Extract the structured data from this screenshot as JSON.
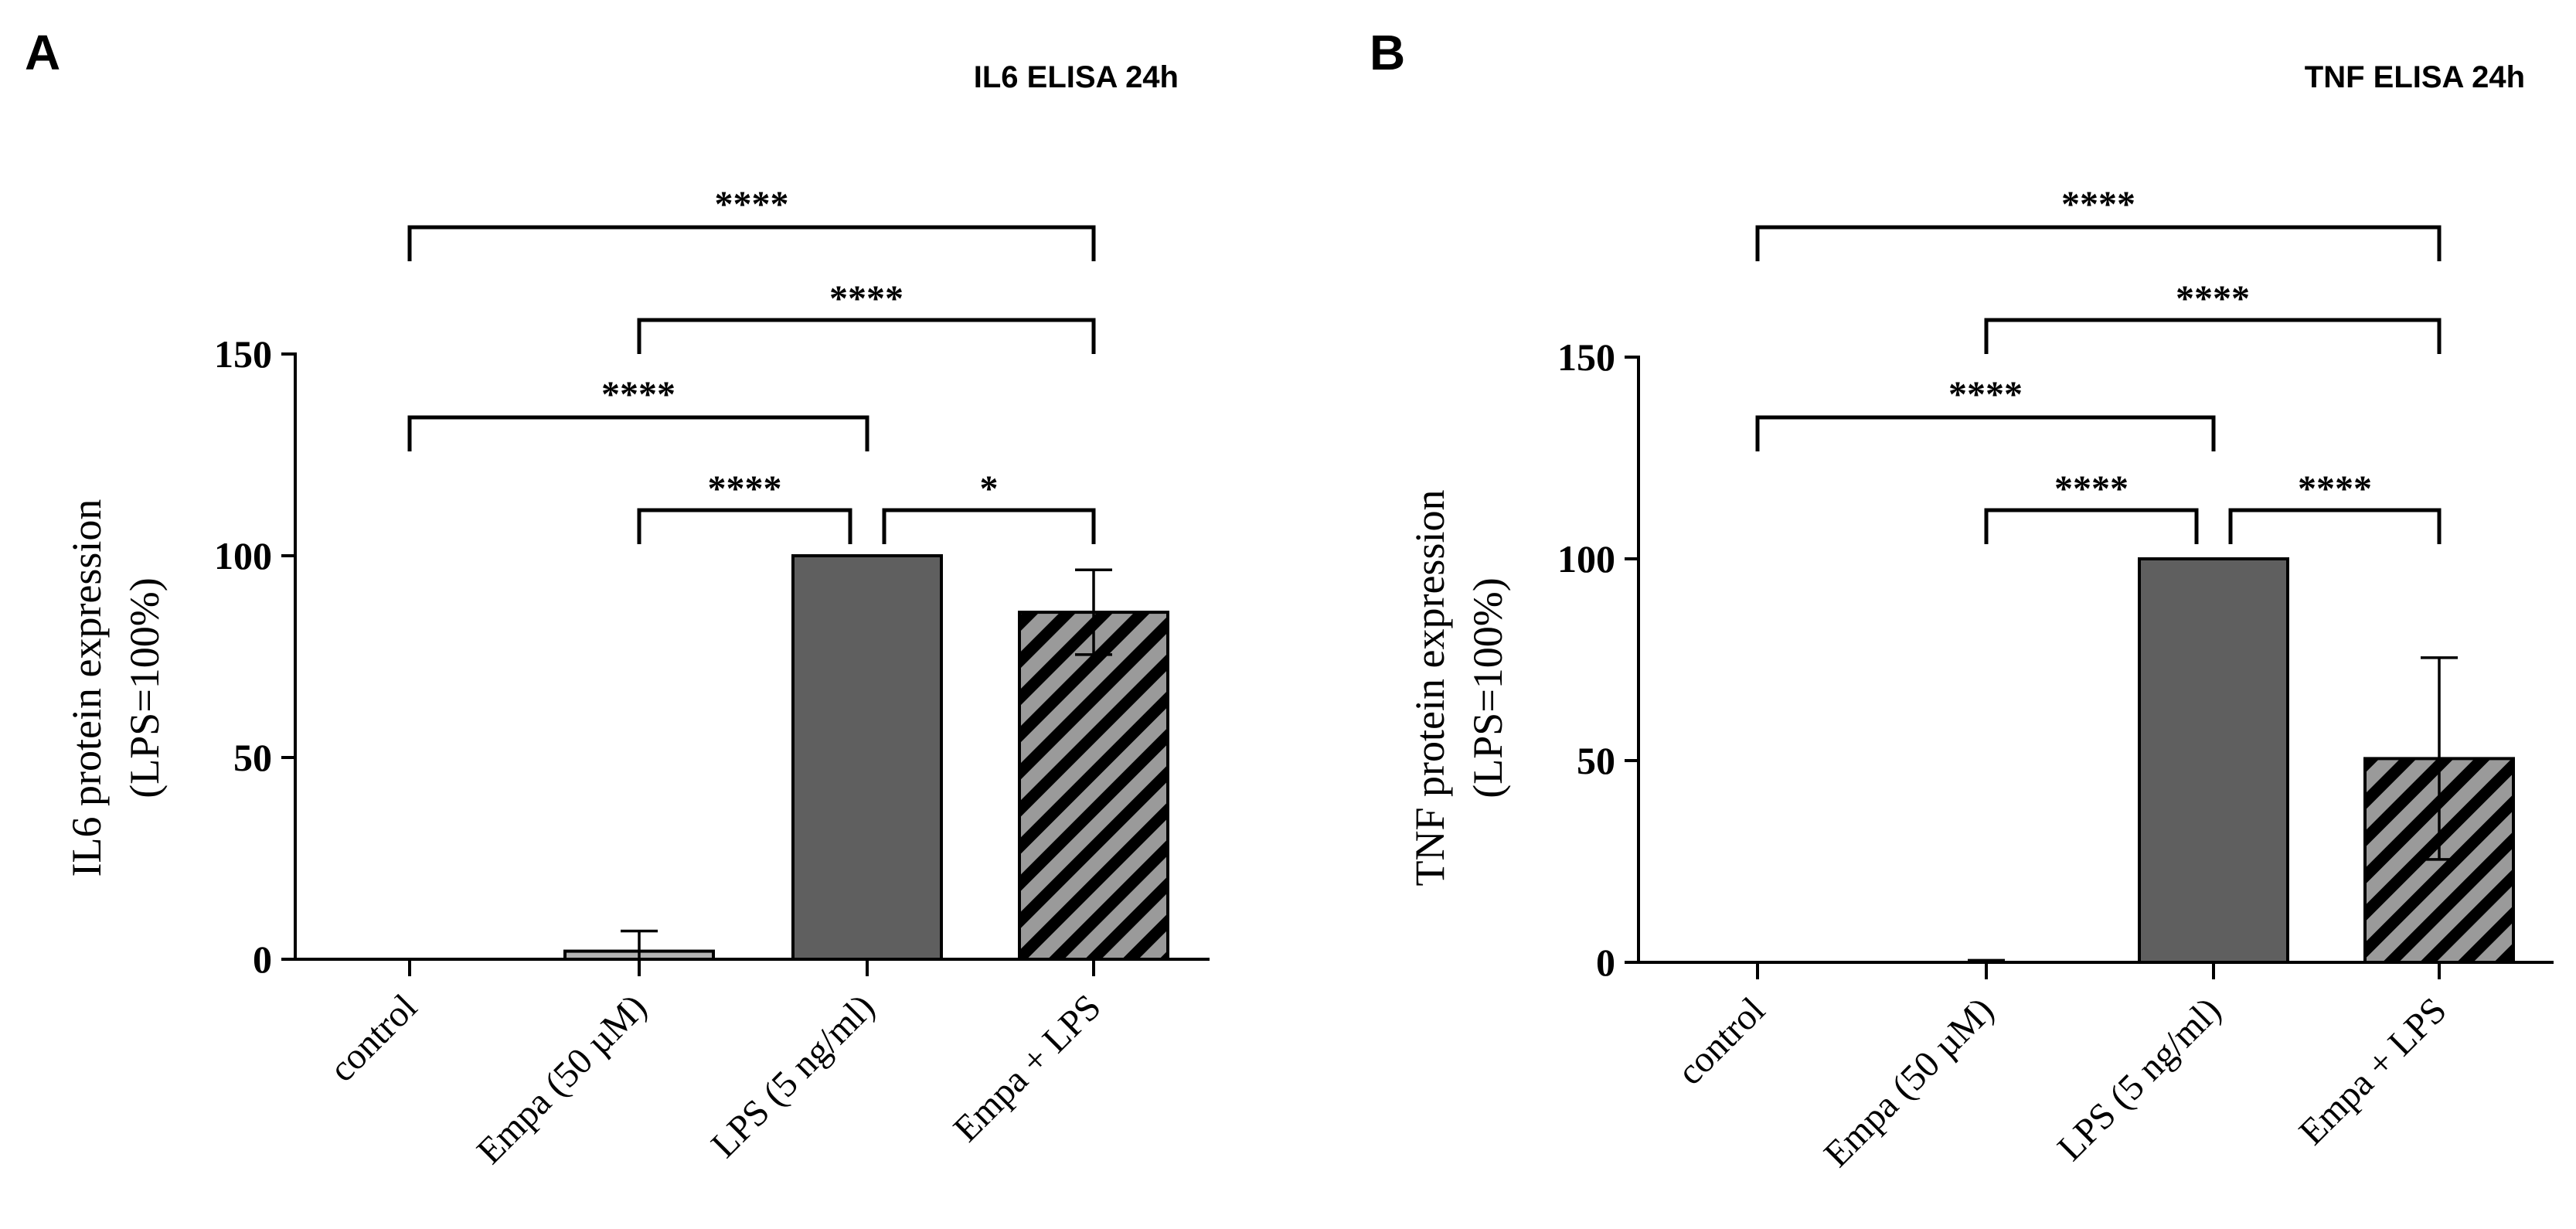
{
  "chart_data": [
    {
      "type": "bar",
      "panel_label": "A",
      "title": "IL6 ELISA  24h",
      "ylabel_line1": "IL6 protein expression",
      "ylabel_line2": "(LPS=100%)",
      "xlabel": "",
      "ylim": [
        0,
        150
      ],
      "yticks": [
        0,
        50,
        100,
        150
      ],
      "categories": [
        "control",
        "Empa (50 µM)",
        "LPS (5 ng/ml)",
        "Empa + LPS"
      ],
      "values": [
        0,
        2,
        100,
        86
      ],
      "errors": [
        0,
        5,
        0,
        10.5
      ],
      "fills": [
        "none",
        "light-gray",
        "dark-gray",
        "hatched"
      ],
      "significance": [
        {
          "from": 0,
          "to": 3,
          "label": "****"
        },
        {
          "from": 1,
          "to": 3,
          "label": "****"
        },
        {
          "from": 0,
          "to": 2,
          "label": "****"
        },
        {
          "from": 1,
          "to": 2,
          "label": "****"
        },
        {
          "from": 2,
          "to": 3,
          "label": "*"
        }
      ]
    },
    {
      "type": "bar",
      "panel_label": "B",
      "title": "TNF ELISA  24h",
      "ylabel_line1": "TNF protein expression",
      "ylabel_line2": "(LPS=100%)",
      "xlabel": "",
      "ylim": [
        0,
        150
      ],
      "yticks": [
        0,
        50,
        100,
        150
      ],
      "categories": [
        "control",
        "Empa (50 µM)",
        "LPS (5 ng/ml)",
        "Empa + LPS"
      ],
      "values": [
        0,
        0,
        100,
        50.5
      ],
      "errors": [
        0,
        0.5,
        0,
        25
      ],
      "fills": [
        "none",
        "none",
        "dark-gray",
        "hatched"
      ],
      "significance": [
        {
          "from": 0,
          "to": 3,
          "label": "****"
        },
        {
          "from": 1,
          "to": 3,
          "label": "****"
        },
        {
          "from": 0,
          "to": 2,
          "label": "****"
        },
        {
          "from": 1,
          "to": 2,
          "label": "****"
        },
        {
          "from": 2,
          "to": 3,
          "label": "****"
        }
      ]
    }
  ],
  "colors": {
    "axis": "#000000",
    "bar_dark": "#5f5f5f",
    "bar_light": "#b4b4b4",
    "hatch_fill": "#9a9a9a",
    "hatch_line": "#000000"
  }
}
